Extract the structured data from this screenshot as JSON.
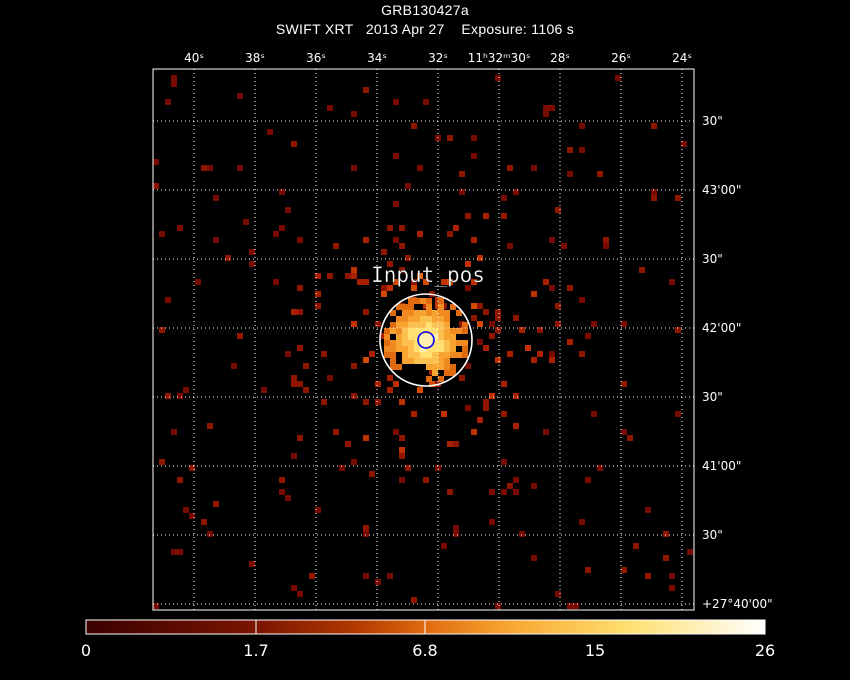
{
  "header": {
    "title": "GRB130427a",
    "subtitle": "SWIFT XRT   2013 Apr 27    Exposure: 1106 s"
  },
  "ra_ticks": [
    "40ˢ",
    "38ˢ",
    "36ˢ",
    "34ˢ",
    "32ˢ",
    "11ʰ32ᵐ30ˢ",
    "28ˢ",
    "26ˢ",
    "24ˢ"
  ],
  "dec_ticks": [
    "30\"",
    "43'00\"",
    "30\"",
    "42'00\"",
    "30\"",
    "41'00\"",
    "30\"",
    "+27°40'00\""
  ],
  "source": {
    "label": "Input_pos"
  },
  "colorbar": {
    "ticks": [
      "0",
      "1.7",
      "6.8",
      "15",
      "26"
    ],
    "colors": [
      "#3a0000",
      "#7a1400",
      "#b33a00",
      "#e06a10",
      "#f7a530",
      "#ffe070",
      "#ffffff"
    ]
  },
  "colors": {
    "background": "#000000",
    "grid": "#ffffff",
    "marker": "#0000ff"
  }
}
